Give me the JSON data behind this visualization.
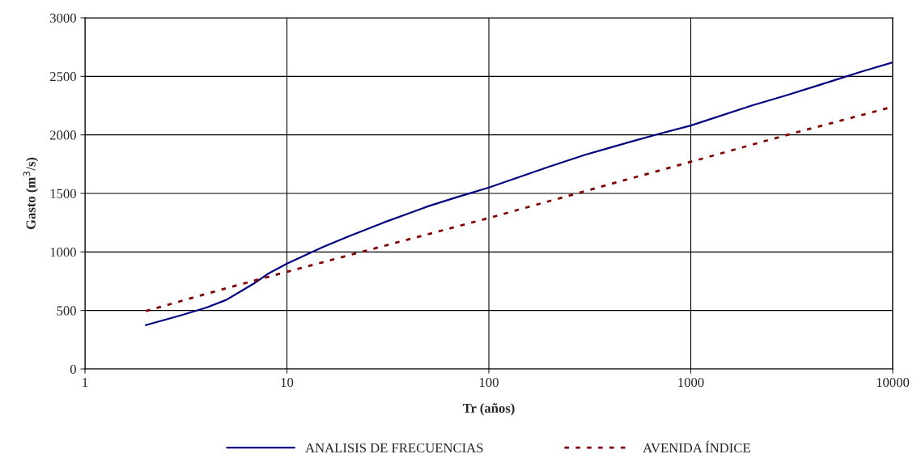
{
  "chart_data": {
    "type": "line",
    "xlabel": "Tr (años)",
    "ylabel": "Gasto (m$^{3}$/s)",
    "log": "x",
    "xlim": [
      1,
      10000
    ],
    "xticks": [
      1,
      10,
      100,
      1000,
      10000
    ],
    "ylim": [
      0,
      3000
    ],
    "yticks": [
      0,
      500,
      1000,
      1500,
      2000,
      2500,
      3000
    ],
    "grid": true,
    "legend": "bottom",
    "series": [
      {
        "name": "ANALISIS DE FRECUENCIAS",
        "color": "#000080",
        "line_style": "solid",
        "x": [
          2,
          3,
          4,
          5,
          6,
          7,
          8,
          10,
          15,
          20,
          30,
          50,
          70,
          100,
          200,
          300,
          500,
          700,
          1000,
          2000,
          3000,
          5000,
          7000,
          10000
        ],
        "values": [
          375,
          460,
          525,
          590,
          670,
          740,
          810,
          900,
          1040,
          1130,
          1250,
          1390,
          1470,
          1550,
          1730,
          1830,
          1940,
          2010,
          2080,
          2250,
          2340,
          2460,
          2540,
          2620
        ]
      },
      {
        "name": "AVENIDA ÍNDICE",
        "color": "#800000",
        "line_style": "dotted",
        "x": [
          2,
          5,
          10,
          30,
          100,
          300,
          1000,
          3000,
          10000
        ],
        "values": [
          495,
          690,
          830,
          1050,
          1290,
          1520,
          1770,
          2000,
          2240
        ]
      }
    ]
  }
}
